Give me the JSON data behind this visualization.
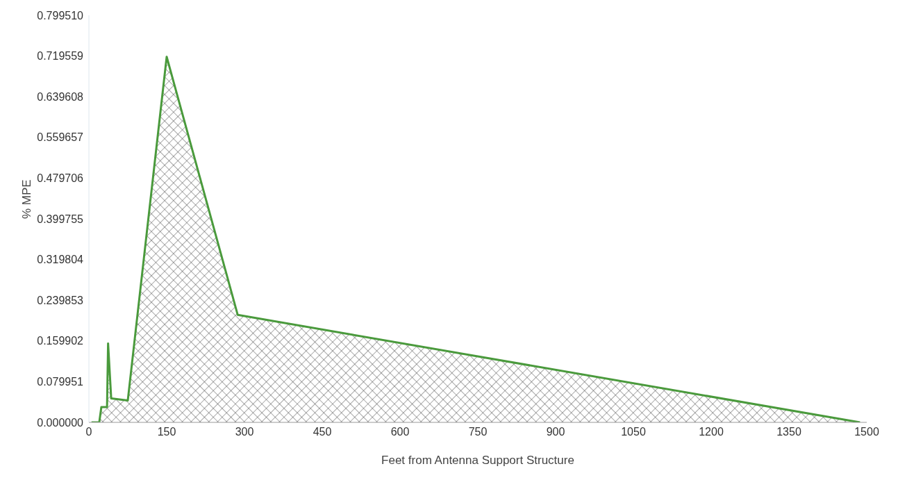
{
  "chart_data": {
    "type": "area",
    "xlabel": "Feet from Antenna Support Structure",
    "ylabel": "% MPE",
    "x": [
      5,
      20,
      24,
      35,
      37,
      43,
      75,
      150,
      287,
      1487
    ],
    "series": [
      {
        "color": "#4a9a3c",
        "values": [
          0,
          0,
          0.03,
          0.03,
          0.155,
          0.047,
          0.043,
          0.718,
          0.211,
          0
        ]
      }
    ],
    "xlim": [
      0,
      1500
    ],
    "xticks": [
      0,
      150,
      300,
      450,
      600,
      750,
      900,
      1050,
      1200,
      1350,
      1500
    ],
    "ylim": [
      0,
      0.79951
    ],
    "yticks": [
      {
        "value": 0,
        "label": "0.000000"
      },
      0.079951,
      0.159902,
      0.239853,
      0.319804,
      0.399755,
      0.479706,
      0.559657,
      0.639608,
      0.719559,
      {
        "value": 0.79951,
        "label": "0.799510"
      }
    ],
    "grid": false,
    "legend": false
  }
}
